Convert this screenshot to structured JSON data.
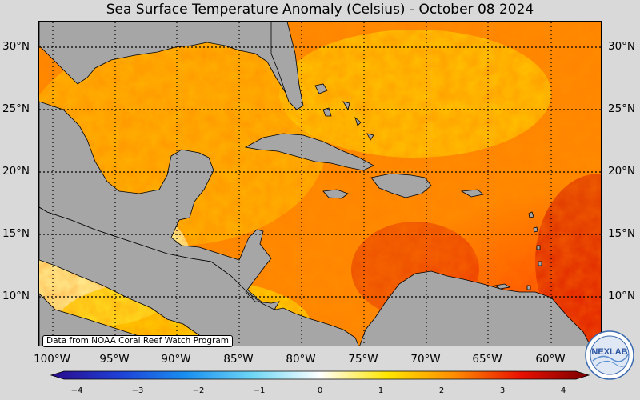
{
  "title": "Sea Surface Temperature Anomaly (Celsius) - October 08 2024",
  "latitude_labels": [
    "30°N",
    "25°N",
    "20°N",
    "15°N",
    "10°N"
  ],
  "longitude_labels": [
    "100°W",
    "95°W",
    "90°W",
    "85°W",
    "80°W",
    "75°W",
    "70°W",
    "65°W",
    "60°W"
  ],
  "credit": "Data from NOAA Coral Reef Watch Program",
  "colorbar": {
    "ticks": [
      "−4",
      "−3",
      "−2",
      "−1",
      "0",
      "1",
      "2",
      "3",
      "4"
    ],
    "min": -4,
    "max": 4,
    "colors": [
      "#2a0a8a",
      "#1f3fd6",
      "#1a8ff0",
      "#6fd6f5",
      "#ffffff",
      "#ffe600",
      "#ff8c00",
      "#e81000",
      "#7a0000"
    ]
  },
  "logo": {
    "text": "NEXLAB"
  },
  "colors": {
    "land": "#a6a6a6",
    "ocean_base": "#ff7a00",
    "background": "#d9d9d9"
  }
}
